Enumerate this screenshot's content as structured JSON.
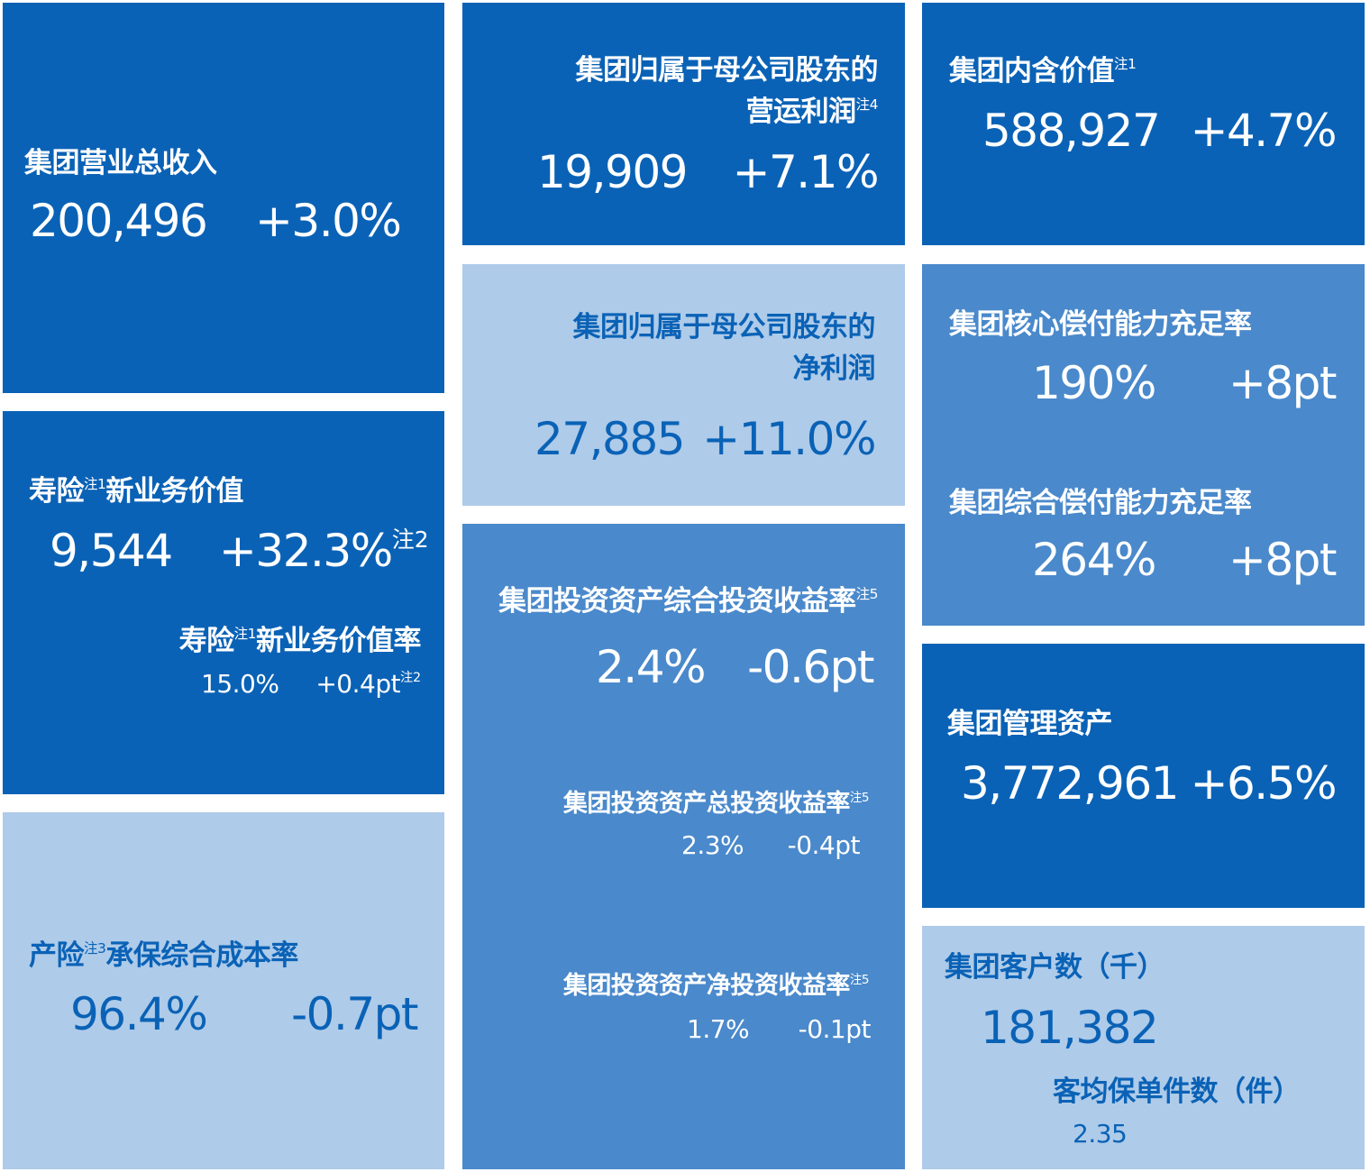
{
  "colors": {
    "dark_blue": "#0a62b6",
    "mid_blue": "#4a89cb",
    "light_blue": "#aecbe9",
    "white": "#ffffff"
  },
  "note": "注",
  "revenue": {
    "label": "集团营业总收入",
    "value": "200,496",
    "change": "+3.0%"
  },
  "operating_profit": {
    "label_line1": "集团归属于母公司股东的",
    "label_line2": "营运利润",
    "note_num": "4",
    "value": "19,909",
    "change": "+7.1%"
  },
  "embedded_value": {
    "label": "集团内含价值",
    "note_num": "1",
    "value": "588,927",
    "change": "+4.7%"
  },
  "net_profit": {
    "label_line1": "集团归属于母公司股东的",
    "label_line2": "净利润",
    "value": "27,885",
    "change": "+11.0%"
  },
  "solvency": {
    "core_label": "集团核心偿付能力充足率",
    "core_value": "190%",
    "core_change": "+8pt",
    "comp_label": "集团综合偿付能力充足率",
    "comp_value": "264%",
    "comp_change": "+8pt"
  },
  "nbv": {
    "label_a": "寿险",
    "label_note_num": "1",
    "label_b": "新业务价值",
    "value": "9,544",
    "change": "+32.3%",
    "change_note_num": "2",
    "margin_label_a": "寿险",
    "margin_label_b": "新业务价值率",
    "margin_value": "15.0%",
    "margin_change": "+0.4pt",
    "margin_note_num": "2"
  },
  "investment": {
    "comprehensive_label": "集团投资资产综合投资收益率",
    "comprehensive_value": "2.4%",
    "comprehensive_change": "-0.6pt",
    "total_label": "集团投资资产总投资收益率",
    "total_value": "2.3%",
    "total_change": "-0.4pt",
    "net_label": "集团投资资产净投资收益率",
    "net_value": "1.7%",
    "net_change": "-0.1pt",
    "note_num": "5"
  },
  "aum": {
    "label": "集团管理资产",
    "value": "3,772,961",
    "change": "+6.5%"
  },
  "combined_ratio": {
    "label_a": "产险",
    "note_num": "3",
    "label_b": "承保综合成本率",
    "value": "96.4%",
    "change": "-0.7pt"
  },
  "customers": {
    "label": "集团客户数（千）",
    "value": "181,382",
    "policies_label": "客均保单件数（件）",
    "policies_value": "2.35"
  }
}
